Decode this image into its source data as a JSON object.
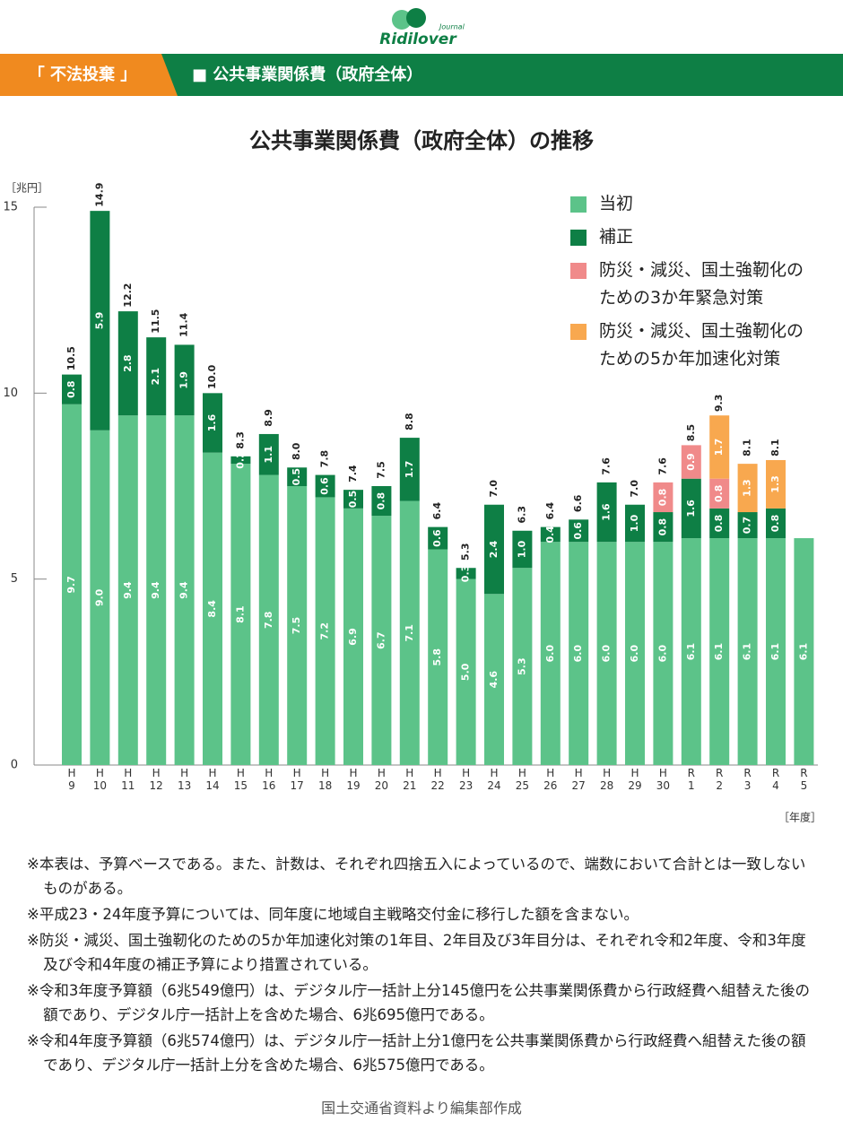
{
  "header": {
    "logo": "Ridilover",
    "logo_sub": "Journal",
    "tag": "「 不法投棄 」",
    "section": "■ 公共事業関係費（政府全体）"
  },
  "chart_data": {
    "type": "bar",
    "stacked": true,
    "title": "公共事業関係費（政府全体）の推移",
    "y_label": "［兆円］",
    "x_label": "［年度］",
    "categories": [
      "H9",
      "H10",
      "H11",
      "H12",
      "H13",
      "H14",
      "H15",
      "H16",
      "H17",
      "H18",
      "H19",
      "H20",
      "H21",
      "H22",
      "H23",
      "H24",
      "H25",
      "H26",
      "H27",
      "H28",
      "H29",
      "H30",
      "R1",
      "R2",
      "R3",
      "R4",
      "R5"
    ],
    "series": [
      {
        "name": "当初",
        "color": "#5cc389",
        "values": [
          9.7,
          9.0,
          9.4,
          9.4,
          9.4,
          8.4,
          8.1,
          7.8,
          7.5,
          7.2,
          6.9,
          6.7,
          7.1,
          5.8,
          5.0,
          4.6,
          5.3,
          6.0,
          6.0,
          6.0,
          6.0,
          6.0,
          6.1,
          6.1,
          6.1,
          6.1,
          6.1
        ],
        "value_labels": [
          "9.7",
          "9.0",
          "9.4",
          "9.4",
          "9.4",
          "8.4",
          "8.1",
          "7.8",
          "7.5",
          "7.2",
          "6.9",
          "6.7",
          "7.1",
          "5.8",
          "5.0",
          "4.6",
          "5.3",
          "6.0",
          "6.0",
          "6.0",
          "6.0",
          "6.0",
          "6.1",
          "6.1",
          "6.1",
          "6.1",
          "6.1"
        ]
      },
      {
        "name": "補正",
        "color": "#0e7f45",
        "values": [
          0.8,
          5.9,
          2.8,
          2.1,
          1.9,
          1.6,
          0.2,
          1.1,
          0.5,
          0.6,
          0.5,
          0.8,
          1.7,
          0.6,
          0.3,
          2.4,
          1.0,
          0.4,
          0.6,
          1.6,
          1.0,
          0.8,
          1.6,
          0.8,
          0.7,
          0.8,
          null
        ],
        "value_labels": [
          "0.8",
          "5.9",
          "2.8",
          "2.1",
          "1.9",
          "1.6",
          "0.2",
          "1.1",
          "0.5",
          "0.6",
          "0.5",
          "0.8",
          "1.7",
          "0.6",
          "0.3",
          "2.4",
          "1.0",
          "0.4",
          "0.6",
          "1.6",
          "1.0",
          "0.8",
          "1.6",
          "0.8",
          "0.7",
          "0.8",
          null
        ]
      },
      {
        "name": "防災・減災、国土強靭化のための3か年緊急対策",
        "color": "#f08a8a",
        "values": [
          null,
          null,
          null,
          null,
          null,
          null,
          null,
          null,
          null,
          null,
          null,
          null,
          null,
          null,
          null,
          null,
          null,
          null,
          null,
          null,
          null,
          0.8,
          0.9,
          0.8,
          null,
          null,
          null
        ],
        "value_labels": [
          null,
          null,
          null,
          null,
          null,
          null,
          null,
          null,
          null,
          null,
          null,
          null,
          null,
          null,
          null,
          null,
          null,
          null,
          null,
          null,
          null,
          "0.8",
          "0.9",
          "0.8",
          null,
          null,
          null
        ]
      },
      {
        "name": "防災・減災、国土強靭化のための5か年加速化対策",
        "color": "#f8a84f",
        "values": [
          null,
          null,
          null,
          null,
          null,
          null,
          null,
          null,
          null,
          null,
          null,
          null,
          null,
          null,
          null,
          null,
          null,
          null,
          null,
          null,
          null,
          null,
          null,
          1.7,
          1.3,
          1.3,
          null
        ],
        "value_labels": [
          null,
          null,
          null,
          null,
          null,
          null,
          null,
          null,
          null,
          null,
          null,
          null,
          null,
          null,
          null,
          null,
          null,
          null,
          null,
          null,
          null,
          null,
          null,
          "1.7",
          "1.3",
          "1.3",
          null
        ]
      }
    ],
    "totals": [
      10.5,
      14.9,
      12.2,
      11.5,
      11.4,
      10.0,
      8.3,
      8.9,
      8.0,
      7.8,
      7.4,
      7.5,
      8.8,
      6.4,
      5.3,
      7.0,
      6.3,
      6.4,
      6.6,
      7.6,
      7.0,
      7.6,
      8.5,
      9.3,
      8.1,
      8.1,
      null
    ],
    "total_labels": [
      "10.5",
      "14.9",
      "12.2",
      "11.5",
      "11.4",
      "10.0",
      "8.3",
      "8.9",
      "8.0",
      "7.8",
      "7.4",
      "7.5",
      "8.8",
      "6.4",
      "5.3",
      "7.0",
      "6.3",
      "6.4",
      "6.6",
      "7.6",
      "7.0",
      "7.6",
      "8.5",
      "9.3",
      "8.1",
      "8.1",
      null
    ],
    "ylim": [
      0,
      15
    ],
    "yticks": [
      0,
      5,
      10,
      15
    ]
  },
  "notes": [
    "※本表は、予算ベースである。また、計数は、それぞれ四捨五入によっているので、端数において合計とは一致しないものがある。",
    "※平成23・24年度予算については、同年度に地域自主戦略交付金に移行した額を含まない。",
    "※防災・減災、国土強靭化のための5か年加速化対策の1年目、2年目及び3年目分は、それぞれ令和2年度、令和3年度及び令和4年度の補正予算により措置されている。",
    "※令和3年度予算額（6兆549億円）は、デジタル庁一括計上分145億円を公共事業関係費から行政経費へ組替えた後の額であり、デジタル庁一括計上を含めた場合、6兆695億円である。",
    "※令和4年度予算額（6兆574億円）は、デジタル庁一括計上分1億円を公共事業関係費から行政経費へ組替えた後の額であり、デジタル庁一括計上分を含めた場合、6兆575億円である。"
  ],
  "source": "国土交通省資料より編集部作成"
}
